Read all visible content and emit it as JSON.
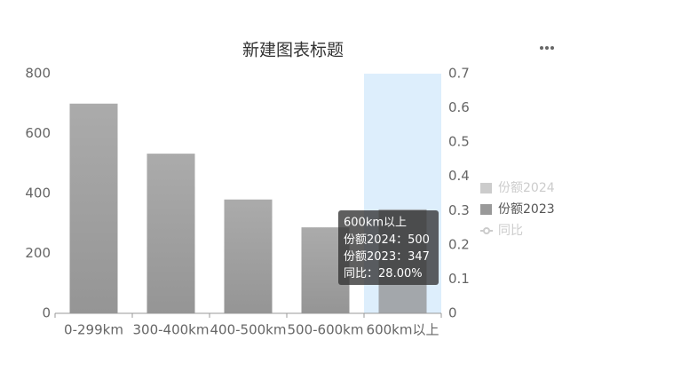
{
  "chart_data": {
    "type": "bar",
    "title": "新建图表标题",
    "categories": [
      "0-299km",
      "300-400km",
      "400-500km",
      "500-600km",
      "600km以上"
    ],
    "series": [
      {
        "name": "份额2024",
        "selected": false,
        "values": [
          null,
          null,
          null,
          null,
          500
        ]
      },
      {
        "name": "份额2023",
        "selected": true,
        "color": "#a0a0a0",
        "values": [
          700,
          533,
          380,
          287,
          347
        ]
      },
      {
        "name": "同比",
        "selected": false,
        "axis": "y2",
        "values": [
          null,
          null,
          null,
          null,
          0.28
        ],
        "value_labels": [
          null,
          null,
          null,
          null,
          "28.00%"
        ]
      }
    ],
    "ylim": [
      0,
      800
    ],
    "yticks": [
      0,
      200,
      400,
      600,
      800
    ],
    "y2lim": [
      0,
      0.7
    ],
    "y2ticks": [
      0,
      0.1,
      0.2,
      0.3,
      0.4,
      0.5,
      0.6,
      0.7
    ],
    "legend": "right",
    "tooltip": {
      "category": 4,
      "separator": "："
    }
  }
}
